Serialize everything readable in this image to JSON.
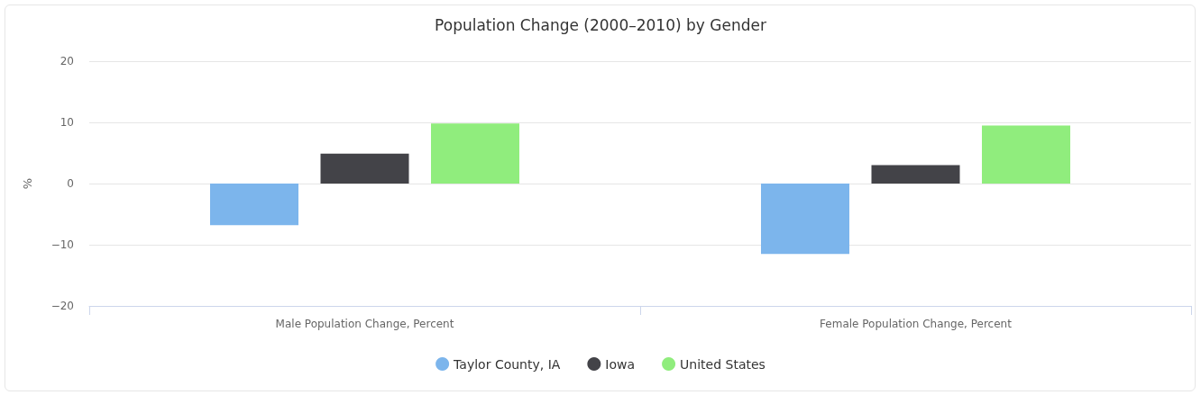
{
  "chart_data": {
    "type": "bar",
    "title": "Population Change (2000–2010) by Gender",
    "ylabel": "%",
    "categories": [
      "Male Population Change, Percent",
      "Female Population Change, Percent"
    ],
    "series": [
      {
        "name": "Taylor County, IA",
        "color": "#7cb5ec",
        "values": [
          -6.8,
          -11.5
        ]
      },
      {
        "name": "Iowa",
        "color": "#434348",
        "values": [
          4.9,
          3.0
        ]
      },
      {
        "name": "United States",
        "color": "#90ed7d",
        "values": [
          9.8,
          9.5
        ]
      }
    ],
    "ylim": [
      -20,
      20
    ],
    "yticks": [
      -20,
      -10,
      0,
      10,
      20
    ],
    "grid": "y",
    "legend": "bottom"
  }
}
